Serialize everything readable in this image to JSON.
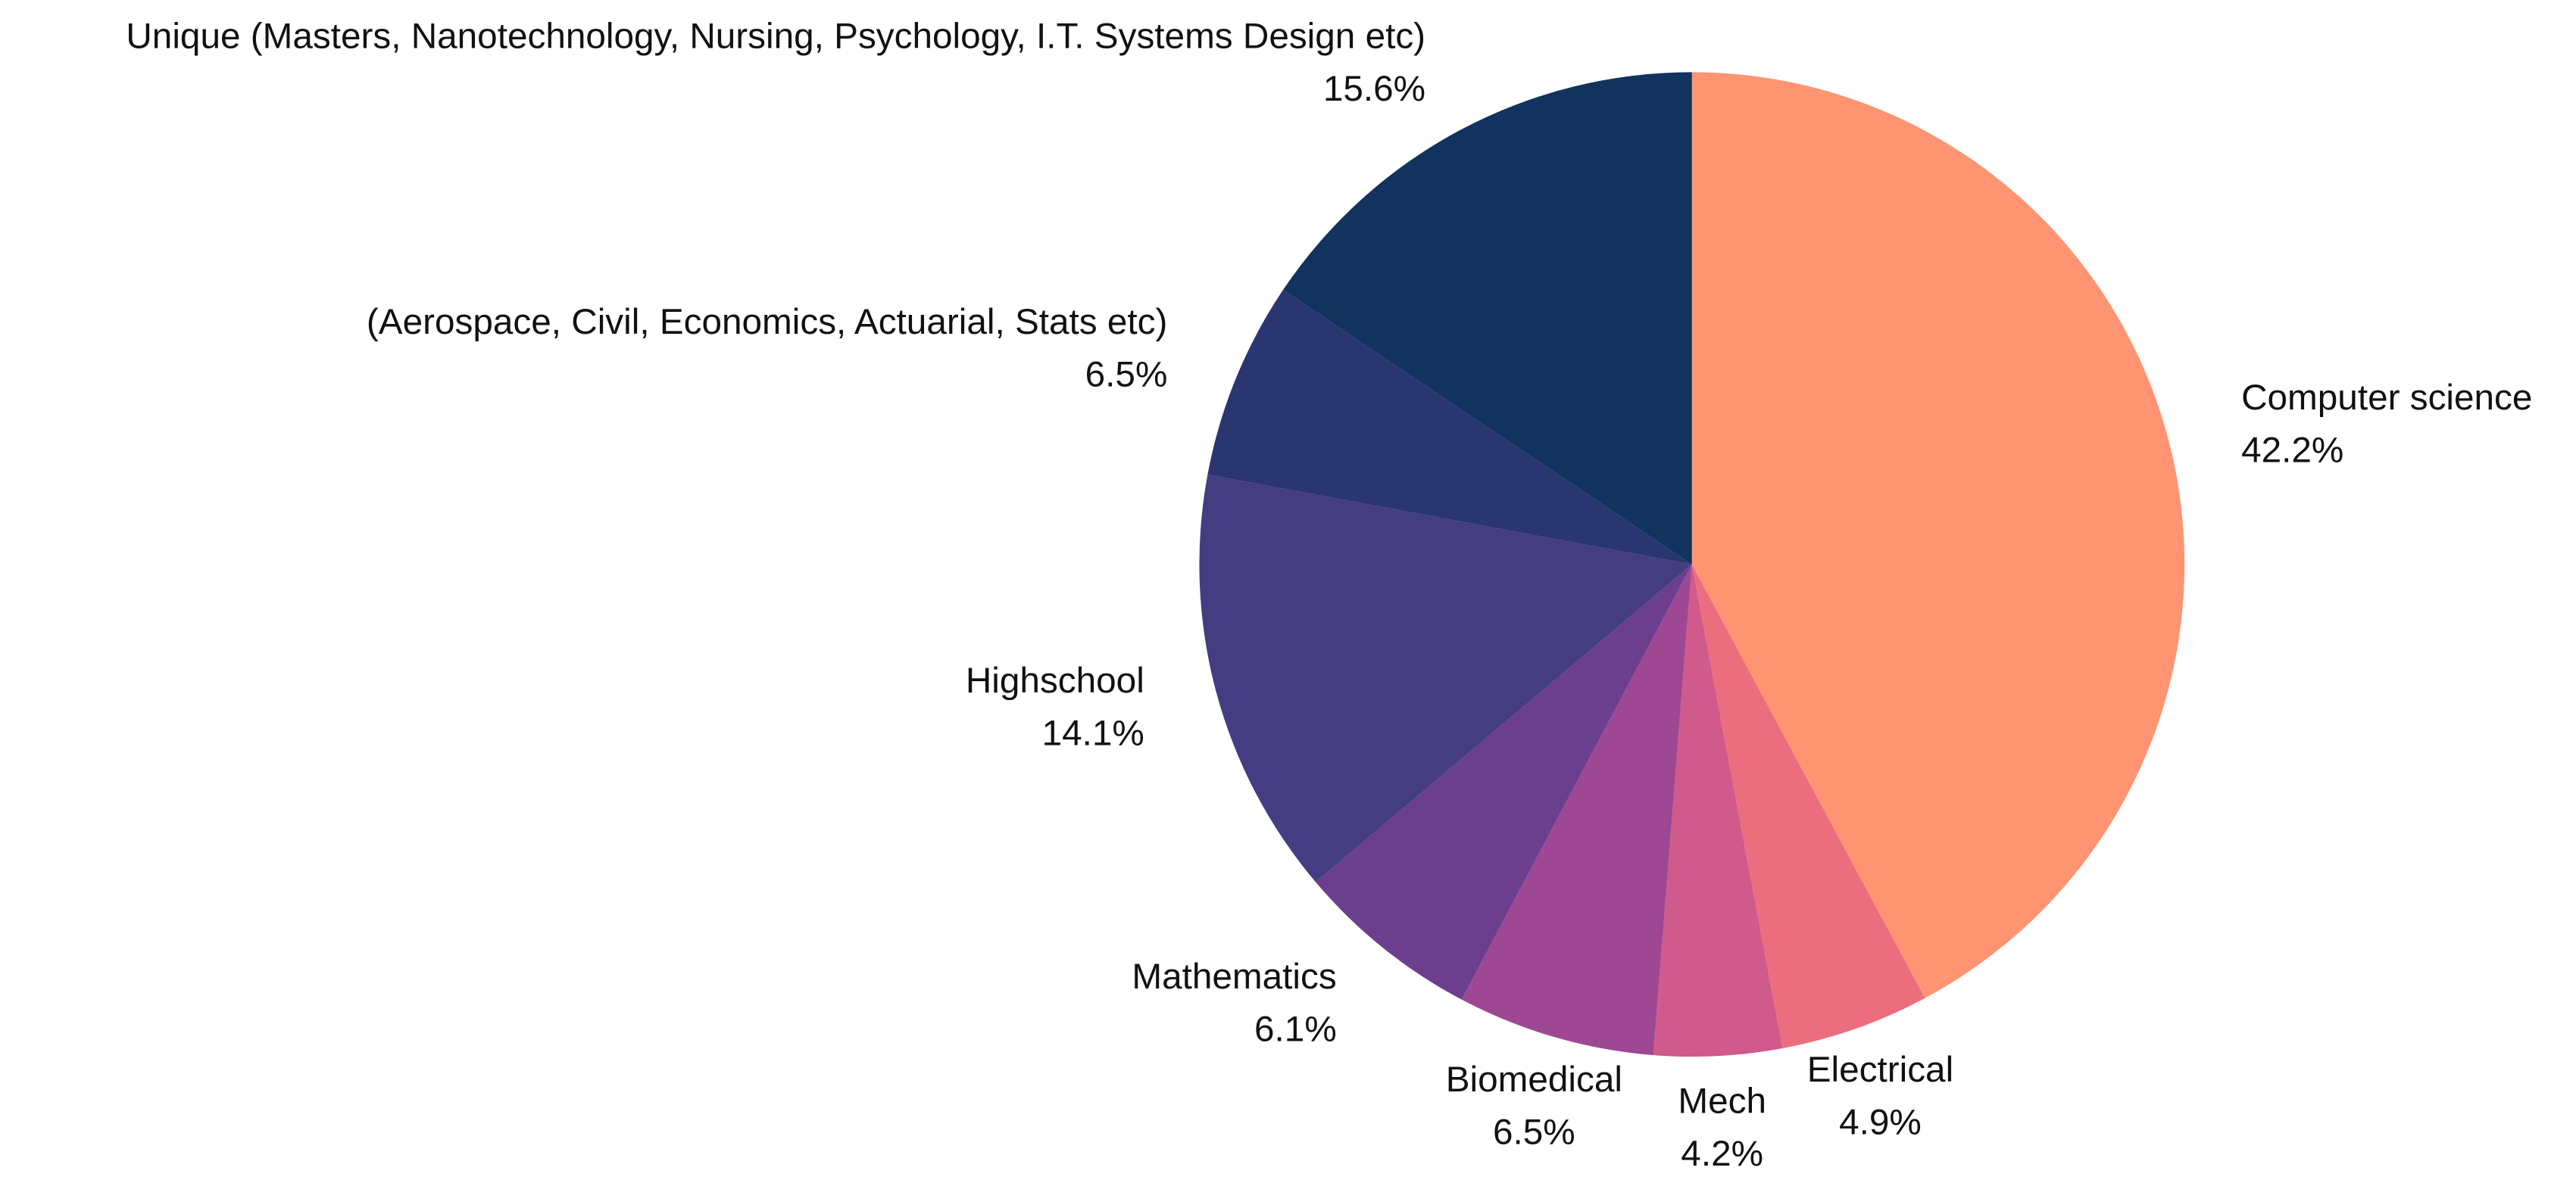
{
  "chart_data": {
    "type": "pie",
    "categories": [
      "Computer science",
      "Electrical",
      "Mech",
      "Biomedical",
      "Mathematics",
      "Highschool",
      "(Aerospace, Civil, Economics, Actuarial, Stats etc)",
      "Unique (Masters, Nanotechnology, Nursing, Psychology, I.T. Systems Design etc)"
    ],
    "values": [
      42.2,
      4.9,
      4.2,
      6.5,
      6.1,
      14.1,
      6.5,
      15.6
    ],
    "value_labels": [
      "42.2%",
      "4.9%",
      "4.2%",
      "6.5%",
      "6.1%",
      "14.1%",
      "6.5%",
      "15.6%"
    ],
    "colors": [
      "#ff9473",
      "#ec6e7e",
      "#d05a8c",
      "#9e4893",
      "#6c3e8e",
      "#443d82",
      "#29366f",
      "#11335d"
    ]
  }
}
